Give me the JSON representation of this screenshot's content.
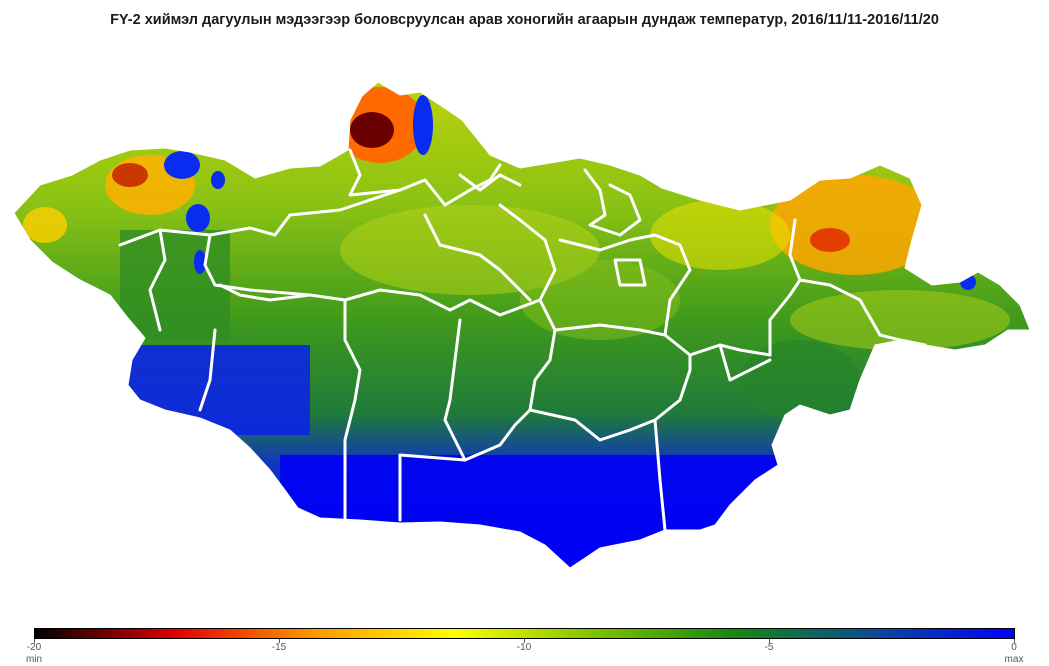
{
  "title": "FY-2 хиймэл дагуулын мэдээгээр боловсруулсан арав хоногийн агаарын дундаж температур, 2016/11/11-2016/11/20",
  "legend": {
    "ticks": [
      "-20",
      "-15",
      "-10",
      "-5",
      "0"
    ],
    "min_label": "min",
    "max_label": "max",
    "range": [
      -20,
      0
    ],
    "colors": [
      "#000000",
      "#e00000",
      "#ff9900",
      "#ffff00",
      "#7fc200",
      "#138a0d",
      "#0b4a9a",
      "#0000ff"
    ]
  },
  "map": {
    "region": "Mongolia",
    "land_color": "#5aa616",
    "boundary_color": "#ffffff",
    "lake_color": "#0a2cf0"
  }
}
